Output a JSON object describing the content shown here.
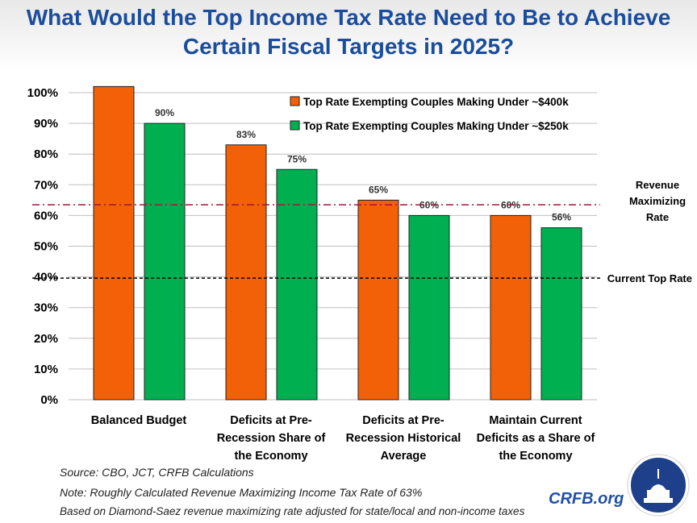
{
  "title": "What Would the Top Income Tax Rate Need to Be to Achieve Certain Fiscal Targets in 2025?",
  "chart_data": {
    "type": "bar",
    "title": "What Would the Top Income Tax Rate Need to Be to Achieve Certain Fiscal Targets in 2025?",
    "categories": [
      "Balanced Budget",
      "Deficits at Pre-Recession Share of the Economy",
      "Deficits at Pre-Recession Historical Average",
      "Maintain Current Deficits as a Share of the Economy"
    ],
    "category_lines": [
      [
        "Balanced Budget"
      ],
      [
        "Deficits at Pre-",
        "Recession Share of",
        "the Economy"
      ],
      [
        "Deficits at Pre-",
        "Recession Historical",
        "Average"
      ],
      [
        "Maintain Current",
        "Deficits as a Share of",
        "the Economy"
      ]
    ],
    "series": [
      {
        "name": "Top Rate Exempting Couples Making Under ~$400k",
        "color": "#f26007",
        "values": [
          102,
          83,
          65,
          60
        ],
        "labels": [
          "",
          "83%",
          "65%",
          "60%"
        ]
      },
      {
        "name": "Top Rate Exempting Couples Making Under ~$250k",
        "color": "#00b050",
        "values": [
          90,
          75,
          60,
          56
        ],
        "labels": [
          "90%",
          "75%",
          "60%",
          "56%"
        ]
      }
    ],
    "ylim": [
      0,
      100
    ],
    "yticks": [
      "0%",
      "10%",
      "20%",
      "30%",
      "40%",
      "50%",
      "60%",
      "70%",
      "80%",
      "90%",
      "100%"
    ],
    "grid": true,
    "legend": "top-right",
    "reference_lines": [
      {
        "label": "Revenue Maximizing Rate",
        "label_lines": [
          "Revenue",
          "Maximizing",
          "Rate"
        ],
        "value": 63.5,
        "color": "#a0163c",
        "style": "dash-dot"
      },
      {
        "label": "Current Top Rate",
        "label_lines": [
          "Current Top Rate"
        ],
        "value": 39.6,
        "color": "#000000",
        "style": "dashed"
      }
    ]
  },
  "notes": [
    "Source: CBO, JCT, CRFB Calculations",
    "Note: Roughly Calculated Revenue Maximizing Income Tax Rate of 63%",
    "Based on Diamond-Saez revenue maximizing rate adjusted for state/local and non-income taxes"
  ],
  "brand": "CRFB.org"
}
